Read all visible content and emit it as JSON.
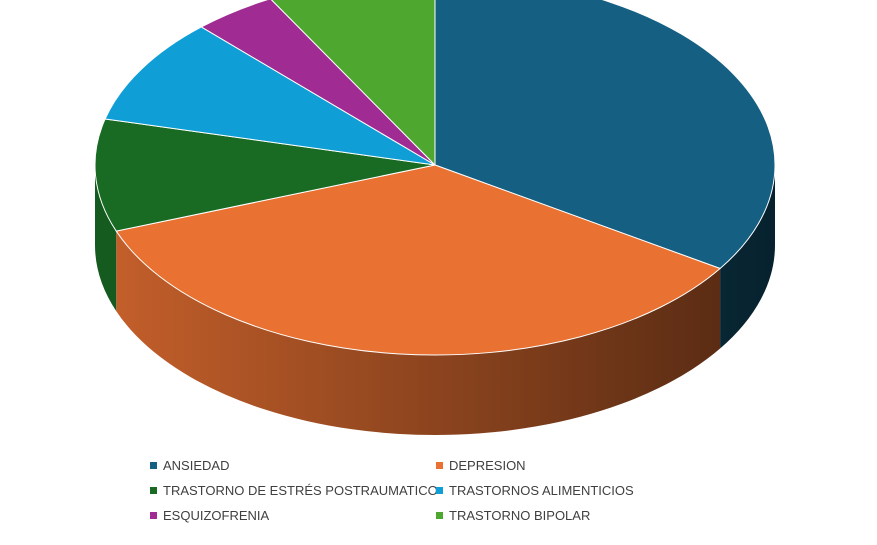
{
  "chart_data": {
    "type": "pie",
    "style": "3d",
    "title": "",
    "categories": [
      "ANSIEDAD",
      "DEPRESION",
      "TRASTORNO DE ESTRÉS POSTRAUMATICO",
      "TRASTORNOS ALIMENTICIOS",
      "ESQUIZOFRENIA",
      "TRASTORNO BIPOLAR"
    ],
    "values": [
      34,
      35,
      9.5,
      9,
      4,
      8
    ],
    "colors": [
      "#156082",
      "#E97132",
      "#196B24",
      "#0F9ED5",
      "#A02B93",
      "#4EA72E"
    ],
    "legend_position": "bottom"
  }
}
